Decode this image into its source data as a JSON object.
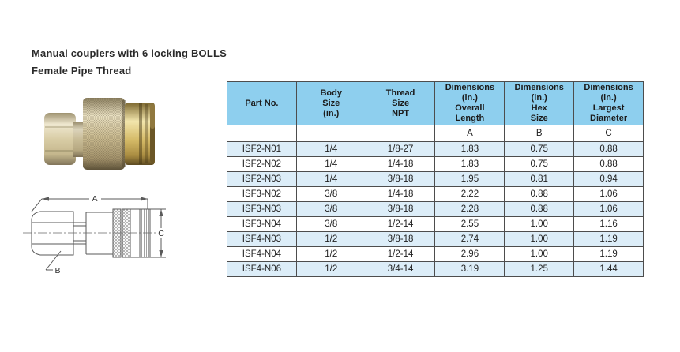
{
  "page": {
    "background": "#ffffff",
    "title_line1": "Manual couplers with 6 locking BOLLS",
    "title_line2": "Female Pipe Thread"
  },
  "product_photo": {
    "description": "brass quick coupler with knurled sleeve and hex nut"
  },
  "drawing": {
    "label_a": "A",
    "label_b": "B",
    "label_c": "C"
  },
  "table": {
    "colors": {
      "header_bg": "#8ecfee",
      "alt_row_bg": "#dcedf8",
      "border": "#4d4d4d"
    },
    "headers": [
      "Part No.",
      "Body\nSize\n(in.)",
      "Thread\nSize\nNPT",
      "Dimensions\n(in.)\nOverall\nLength",
      "Dimensions\n(in.)\nHex\nSize",
      "Dimensions\n(in.)\nLargest\nDiameter"
    ],
    "dimension_letters": [
      "",
      "",
      "",
      "A",
      "B",
      "C"
    ],
    "rows": [
      [
        "ISF2-N01",
        "1/4",
        "1/8-27",
        "1.83",
        "0.75",
        "0.88"
      ],
      [
        "ISF2-N02",
        "1/4",
        "1/4-18",
        "1.83",
        "0.75",
        "0.88"
      ],
      [
        "ISF2-N03",
        "1/4",
        "3/8-18",
        "1.95",
        "0.81",
        "0.94"
      ],
      [
        "ISF3-N02",
        "3/8",
        "1/4-18",
        "2.22",
        "0.88",
        "1.06"
      ],
      [
        "ISF3-N03",
        "3/8",
        "3/8-18",
        "2.28",
        "0.88",
        "1.06"
      ],
      [
        "ISF3-N04",
        "3/8",
        "1/2-14",
        "2.55",
        "1.00",
        "1.16"
      ],
      [
        "ISF4-N03",
        "1/2",
        "3/8-18",
        "2.74",
        "1.00",
        "1.19"
      ],
      [
        "ISF4-N04",
        "1/2",
        "1/2-14",
        "2.96",
        "1.00",
        "1.19"
      ],
      [
        "ISF4-N06",
        "1/2",
        "3/4-14",
        "3.19",
        "1.25",
        "1.44"
      ]
    ]
  }
}
